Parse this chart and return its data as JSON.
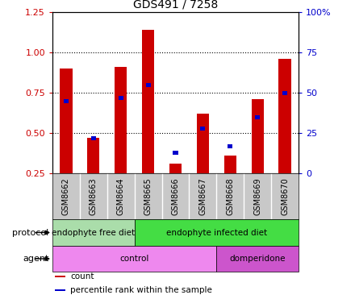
{
  "title": "GDS491 / 7258",
  "samples": [
    "GSM8662",
    "GSM8663",
    "GSM8664",
    "GSM8665",
    "GSM8666",
    "GSM8667",
    "GSM8668",
    "GSM8669",
    "GSM8670"
  ],
  "red_values": [
    0.9,
    0.47,
    0.91,
    1.14,
    0.31,
    0.62,
    0.36,
    0.71,
    0.96
  ],
  "blue_values": [
    45,
    22,
    47,
    55,
    13,
    28,
    17,
    35,
    50
  ],
  "ylim_left": [
    0.25,
    1.25
  ],
  "ylim_right": [
    0,
    100
  ],
  "yticks_left": [
    0.25,
    0.5,
    0.75,
    1.0,
    1.25
  ],
  "yticks_right": [
    0,
    25,
    50,
    75,
    100
  ],
  "ytick_labels_right": [
    "0",
    "25",
    "50",
    "75",
    "100%"
  ],
  "bar_width": 0.45,
  "blue_bar_width": 0.18,
  "protocol_groups": [
    {
      "label": "endophyte free diet",
      "start": 0,
      "end": 3,
      "color": "#aaddaa"
    },
    {
      "label": "endophyte infected diet",
      "start": 3,
      "end": 9,
      "color": "#44dd44"
    }
  ],
  "agent_groups": [
    {
      "label": "control",
      "start": 0,
      "end": 6,
      "color": "#ee88ee"
    },
    {
      "label": "domperidone",
      "start": 6,
      "end": 9,
      "color": "#cc55cc"
    }
  ],
  "protocol_label": "protocol",
  "agent_label": "agent",
  "legend_items": [
    {
      "label": "count",
      "color": "#cc0000"
    },
    {
      "label": "percentile rank within the sample",
      "color": "#0000cc"
    }
  ],
  "red_color": "#cc0000",
  "blue_color": "#0000cc",
  "bg_color": "#ffffff",
  "plot_bg": "#ffffff",
  "left_tick_color": "#cc0000",
  "right_tick_color": "#0000cc",
  "xlabels_bg": "#c8c8c8",
  "dotted_lines": [
    0.5,
    0.75,
    1.0
  ],
  "grid_linestyle": "dotted"
}
